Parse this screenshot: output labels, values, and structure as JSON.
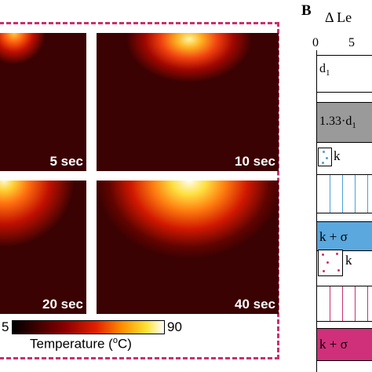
{
  "panel_a": {
    "panels": [
      {
        "label": "5 sec"
      },
      {
        "label": "10 sec"
      },
      {
        "label": "20 sec"
      },
      {
        "label": "40 sec"
      }
    ],
    "colorbar": {
      "min": "5",
      "max": "90",
      "label_main": "Temperature (",
      "label_sup": "o",
      "label_end": "C)"
    }
  },
  "panel_b": {
    "letter": "B",
    "axis_title": "Δ Le",
    "ticks": [
      "0",
      "5"
    ],
    "rows": [
      {
        "label": "d",
        "sub": "1"
      },
      {
        "label": "1.33·d",
        "sub": "1"
      },
      {
        "label": "k"
      },
      {
        "label": "k + σ"
      },
      {
        "label": "k"
      },
      {
        "label": "k + σ"
      }
    ]
  }
}
